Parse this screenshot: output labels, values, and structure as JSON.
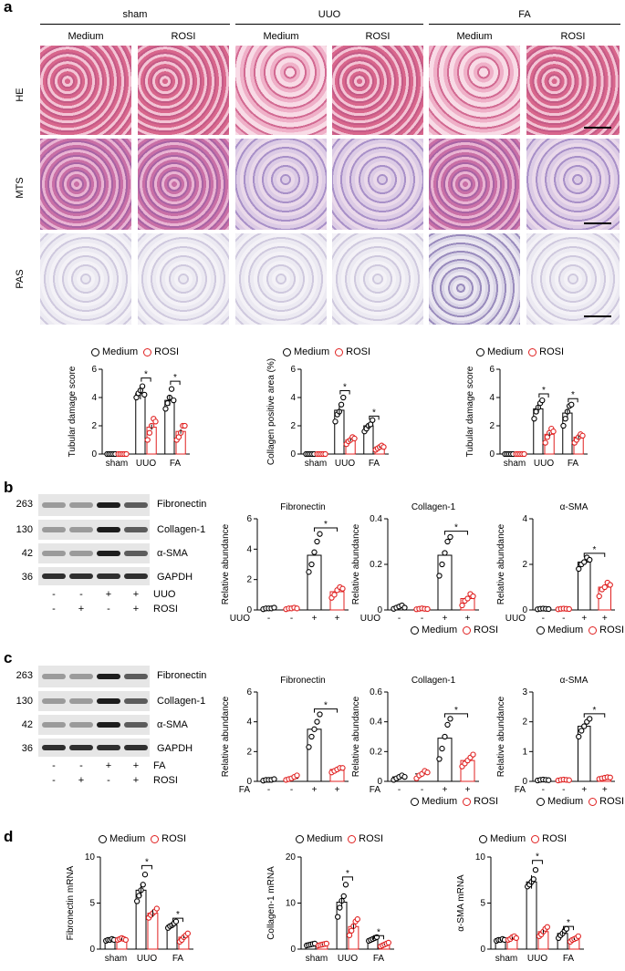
{
  "panels": {
    "a": "a",
    "b": "b",
    "c": "c",
    "d": "d"
  },
  "headers": {
    "groups": [
      "sham",
      "UUO",
      "FA"
    ],
    "cols": [
      "Medium",
      "ROSI",
      "Medium",
      "ROSI",
      "Medium",
      "ROSI"
    ],
    "rows": [
      "HE",
      "MTS",
      "PAS"
    ]
  },
  "legend": {
    "medium": "Medium",
    "rosi": "ROSI"
  },
  "star": "*",
  "blots": {
    "mw": [
      "263",
      "130",
      "42",
      "36"
    ],
    "proteins": [
      "Fibronectin",
      "Collagen-1",
      "α-SMA",
      "GAPDH"
    ],
    "b_treat": {
      "row1_label": "UUO",
      "row2_label": "ROSI",
      "row1": [
        "-",
        "-",
        "+",
        "+"
      ],
      "row2": [
        "-",
        "+",
        "-",
        "+"
      ]
    },
    "c_treat": {
      "row1_label": "FA",
      "row2_label": "ROSI",
      "row1": [
        "-",
        "-",
        "+",
        "+"
      ],
      "row2": [
        "-",
        "+",
        "-",
        "+"
      ]
    }
  },
  "chart_data": [
    {
      "id": "a1",
      "type": "bar",
      "categories": [
        "sham",
        "UUO",
        "FA"
      ],
      "ylabel": "Tubular damage score",
      "ylim": [
        0,
        6
      ],
      "yticks": [
        0,
        2,
        4,
        6
      ],
      "series": [
        {
          "name": "Medium",
          "values": [
            0,
            4.3,
            3.8
          ]
        },
        {
          "name": "ROSI",
          "values": [
            0,
            1.9,
            1.6
          ]
        }
      ],
      "points": [
        [
          [
            0,
            0,
            0,
            0,
            0
          ],
          [
            0,
            0,
            0,
            0,
            0
          ]
        ],
        [
          [
            4.0,
            4.3,
            4.5,
            4.8,
            4.2
          ],
          [
            1.0,
            1.5,
            2.0,
            2.5,
            2.3
          ]
        ],
        [
          [
            3.2,
            3.6,
            4.0,
            4.6,
            3.8
          ],
          [
            1.0,
            1.2,
            1.5,
            2.0,
            2.0
          ]
        ]
      ],
      "sig": [
        1,
        2
      ]
    },
    {
      "id": "a2",
      "type": "bar",
      "categories": [
        "sham",
        "UUO",
        "FA"
      ],
      "ylabel": "Collagen positive area (%)",
      "ylim": [
        0,
        6
      ],
      "yticks": [
        0,
        2,
        4,
        6
      ],
      "series": [
        {
          "name": "Medium",
          "values": [
            0,
            3.1,
            2.0
          ]
        },
        {
          "name": "ROSI",
          "values": [
            0,
            1.0,
            0.5
          ]
        }
      ],
      "points": [
        [
          [
            0,
            0,
            0,
            0,
            0
          ],
          [
            0,
            0,
            0,
            0,
            0
          ]
        ],
        [
          [
            2.3,
            2.8,
            3.0,
            3.5,
            4.0
          ],
          [
            0.7,
            0.9,
            1.0,
            1.2,
            1.1
          ]
        ],
        [
          [
            1.6,
            1.8,
            2.0,
            2.1,
            2.4
          ],
          [
            0.3,
            0.4,
            0.5,
            0.6,
            0.5
          ]
        ]
      ],
      "sig": [
        1,
        2
      ]
    },
    {
      "id": "a3",
      "type": "bar",
      "categories": [
        "sham",
        "UUO",
        "FA"
      ],
      "ylabel": "Tubular damage score",
      "ylim": [
        0,
        6
      ],
      "yticks": [
        0,
        2,
        4,
        6
      ],
      "series": [
        {
          "name": "Medium",
          "values": [
            0,
            3.2,
            2.9
          ]
        },
        {
          "name": "ROSI",
          "values": [
            0,
            1.4,
            1.2
          ]
        }
      ],
      "points": [
        [
          [
            0,
            0,
            0,
            0,
            0
          ],
          [
            0,
            0,
            0,
            0,
            0
          ]
        ],
        [
          [
            2.5,
            3.0,
            3.3,
            3.6,
            3.8
          ],
          [
            0.8,
            1.2,
            1.5,
            1.8,
            1.6
          ]
        ],
        [
          [
            2.0,
            2.5,
            3.0,
            3.4,
            3.5
          ],
          [
            0.8,
            1.0,
            1.2,
            1.4,
            1.3
          ]
        ]
      ],
      "sig": [
        1,
        2
      ]
    },
    {
      "id": "b1",
      "type": "scatterbar",
      "title": "Fibronectin",
      "ylabel": "Relative abundance",
      "ylim": [
        0,
        6
      ],
      "yticks": [
        0,
        2,
        4,
        6
      ],
      "values": [
        0.1,
        0.1,
        3.6,
        1.2
      ],
      "points": [
        [
          0.05,
          0.1,
          0.1,
          0.1,
          0.15
        ],
        [
          0.05,
          0.1,
          0.1,
          0.15,
          0.1
        ],
        [
          2.5,
          3.0,
          3.8,
          4.5,
          5.0
        ],
        [
          0.8,
          1.0,
          1.3,
          1.5,
          1.4
        ]
      ]
    },
    {
      "id": "b2",
      "type": "scatterbar",
      "title": "Collagen-1",
      "ylabel": "Relative abundance",
      "ylim": [
        0,
        0.4
      ],
      "yticks": [
        0,
        0.2,
        0.4
      ],
      "values": [
        0.01,
        0.005,
        0.24,
        0.05
      ],
      "points": [
        [
          0.005,
          0.01,
          0.015,
          0.02,
          0.01
        ],
        [
          0.003,
          0.005,
          0.007,
          0.005,
          0.004
        ],
        [
          0.15,
          0.2,
          0.25,
          0.3,
          0.32
        ],
        [
          0.02,
          0.04,
          0.05,
          0.07,
          0.06
        ]
      ]
    },
    {
      "id": "b3",
      "type": "scatterbar",
      "title": "α-SMA",
      "ylabel": "Relative abundance",
      "ylim": [
        0,
        4
      ],
      "yticks": [
        0,
        2,
        4
      ],
      "values": [
        0.05,
        0.05,
        2.1,
        1.0
      ],
      "points": [
        [
          0.03,
          0.05,
          0.06,
          0.05,
          0.04
        ],
        [
          0.03,
          0.05,
          0.06,
          0.05,
          0.04
        ],
        [
          1.8,
          2.0,
          2.1,
          2.3,
          2.2
        ],
        [
          0.6,
          0.9,
          1.0,
          1.2,
          1.1
        ]
      ]
    },
    {
      "id": "c1",
      "type": "scatterbar",
      "title": "Fibronectin",
      "ylabel": "Relative abundance",
      "ylim": [
        0,
        6
      ],
      "yticks": [
        0,
        2,
        4,
        6
      ],
      "values": [
        0.1,
        0.2,
        3.5,
        0.8
      ],
      "points": [
        [
          0.05,
          0.1,
          0.1,
          0.1,
          0.15
        ],
        [
          0.1,
          0.15,
          0.2,
          0.3,
          0.4
        ],
        [
          2.3,
          3.0,
          3.5,
          4.0,
          4.5
        ],
        [
          0.6,
          0.7,
          0.8,
          0.9,
          0.9
        ]
      ]
    },
    {
      "id": "c2",
      "type": "scatterbar",
      "title": "Collagen-1",
      "ylabel": "Relative abundance",
      "ylim": [
        0,
        0.6
      ],
      "yticks": [
        0,
        0.2,
        0.4,
        0.6
      ],
      "values": [
        0.03,
        0.05,
        0.29,
        0.14
      ],
      "points": [
        [
          0.01,
          0.02,
          0.03,
          0.04,
          0.03
        ],
        [
          0.02,
          0.04,
          0.05,
          0.07,
          0.06
        ],
        [
          0.15,
          0.22,
          0.3,
          0.38,
          0.42
        ],
        [
          0.1,
          0.12,
          0.14,
          0.16,
          0.18
        ]
      ]
    },
    {
      "id": "c3",
      "type": "scatterbar",
      "title": "α-SMA",
      "ylabel": "Relative abundance",
      "ylim": [
        0,
        3
      ],
      "yticks": [
        0,
        1,
        2,
        3
      ],
      "values": [
        0.05,
        0.05,
        1.85,
        0.12
      ],
      "points": [
        [
          0.03,
          0.05,
          0.06,
          0.05,
          0.04
        ],
        [
          0.03,
          0.05,
          0.06,
          0.05,
          0.04
        ],
        [
          1.5,
          1.7,
          1.85,
          2.0,
          2.1
        ],
        [
          0.08,
          0.1,
          0.12,
          0.14,
          0.13
        ]
      ]
    },
    {
      "id": "d1",
      "type": "bar",
      "categories": [
        "sham",
        "UUO",
        "FA"
      ],
      "ylabel": "Fibronectin mRNA",
      "ylim": [
        0,
        10
      ],
      "yticks": [
        0,
        5,
        10
      ],
      "series": [
        {
          "name": "Medium",
          "values": [
            1.0,
            6.4,
            2.6
          ]
        },
        {
          "name": "ROSI",
          "values": [
            1.1,
            3.9,
            1.3
          ]
        }
      ],
      "points": [
        [
          [
            0.9,
            1.0,
            1.0,
            1.1,
            1.0
          ],
          [
            1.0,
            1.1,
            1.2,
            1.1,
            1.0
          ]
        ],
        [
          [
            5.2,
            5.8,
            6.4,
            7.0,
            8.1
          ],
          [
            3.4,
            3.7,
            3.9,
            4.1,
            4.4
          ]
        ],
        [
          [
            2.3,
            2.5,
            2.6,
            2.8,
            3.0
          ],
          [
            0.8,
            1.0,
            1.3,
            1.5,
            1.7
          ]
        ]
      ],
      "sig": [
        1,
        2
      ]
    },
    {
      "id": "d2",
      "type": "bar",
      "categories": [
        "sham",
        "UUO",
        "FA"
      ],
      "ylabel": "Collagen-1 mRNA",
      "ylim": [
        0,
        20
      ],
      "yticks": [
        0,
        10,
        20
      ],
      "series": [
        {
          "name": "Medium",
          "values": [
            1.0,
            10.2,
            2.2
          ]
        },
        {
          "name": "ROSI",
          "values": [
            1.0,
            4.9,
            1.0
          ]
        }
      ],
      "points": [
        [
          [
            0.8,
            0.9,
            1.0,
            1.1,
            1.2
          ],
          [
            0.8,
            0.9,
            1.0,
            1.1,
            1.2
          ]
        ],
        [
          [
            7.0,
            9.0,
            10.5,
            11.5,
            14.0
          ],
          [
            3.0,
            4.0,
            5.0,
            6.0,
            6.5
          ]
        ],
        [
          [
            1.8,
            2.0,
            2.2,
            2.4,
            2.6
          ],
          [
            0.6,
            0.8,
            1.0,
            1.2,
            1.4
          ]
        ]
      ],
      "sig": [
        1,
        2
      ]
    },
    {
      "id": "d3",
      "type": "bar",
      "categories": [
        "sham",
        "UUO",
        "FA"
      ],
      "ylabel": "α-SMA mRNA",
      "ylim": [
        0,
        10
      ],
      "yticks": [
        0,
        5,
        10
      ],
      "series": [
        {
          "name": "Medium",
          "values": [
            1.0,
            7.3,
            1.7
          ]
        },
        {
          "name": "ROSI",
          "values": [
            1.2,
            1.9,
            1.1
          ]
        }
      ],
      "points": [
        [
          [
            0.9,
            1.0,
            1.0,
            1.1,
            1.0
          ],
          [
            1.0,
            1.1,
            1.3,
            1.4,
            1.2
          ]
        ],
        [
          [
            6.8,
            7.0,
            7.3,
            7.6,
            8.6
          ],
          [
            1.4,
            1.6,
            1.9,
            2.2,
            2.4
          ]
        ],
        [
          [
            1.2,
            1.5,
            1.7,
            2.0,
            2.2
          ],
          [
            0.8,
            1.0,
            1.1,
            1.2,
            1.4
          ]
        ]
      ],
      "sig": [
        1,
        2
      ]
    }
  ]
}
